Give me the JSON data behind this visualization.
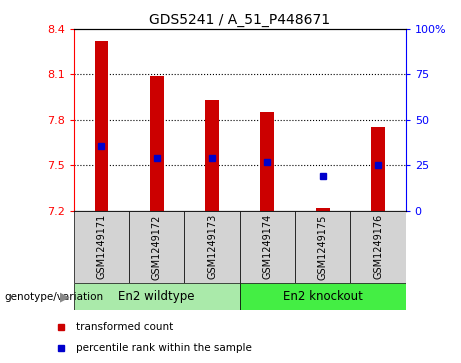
{
  "title": "GDS5241 / A_51_P448671",
  "categories": [
    "GSM1249171",
    "GSM1249172",
    "GSM1249173",
    "GSM1249174",
    "GSM1249175",
    "GSM1249176"
  ],
  "bar_bottoms": [
    7.2,
    7.2,
    7.2,
    7.2,
    7.2,
    7.2
  ],
  "bar_tops": [
    8.32,
    8.09,
    7.93,
    7.85,
    7.22,
    7.75
  ],
  "blue_dots": [
    7.63,
    7.55,
    7.55,
    7.52,
    7.43,
    7.5
  ],
  "bar_color": "#cc0000",
  "dot_color": "#0000cc",
  "ylim_left": [
    7.2,
    8.4
  ],
  "ylim_right": [
    0,
    100
  ],
  "yticks_left": [
    7.2,
    7.5,
    7.8,
    8.1,
    8.4
  ],
  "ytick_labels_left": [
    "7.2",
    "7.5",
    "7.8",
    "8.1",
    "8.4"
  ],
  "yticks_right": [
    0,
    25,
    50,
    75,
    100
  ],
  "ytick_labels_right": [
    "0",
    "25",
    "50",
    "75",
    "100%"
  ],
  "hlines": [
    7.5,
    7.8,
    8.1
  ],
  "group1_label": "En2 wildtype",
  "group2_label": "En2 knockout",
  "group1_indices": [
    0,
    1,
    2
  ],
  "group2_indices": [
    3,
    4,
    5
  ],
  "group1_color": "#aaeaaa",
  "group2_color": "#44ee44",
  "group_label_prefix": "genotype/variation",
  "legend_items": [
    {
      "label": "transformed count",
      "color": "#cc0000"
    },
    {
      "label": "percentile rank within the sample",
      "color": "#0000cc"
    }
  ],
  "bar_width": 0.25,
  "bg_color_plot": "#ffffff",
  "tick_area_bg": "#d3d3d3",
  "title_fontsize": 10,
  "tick_fontsize": 8,
  "label_fontsize": 8
}
